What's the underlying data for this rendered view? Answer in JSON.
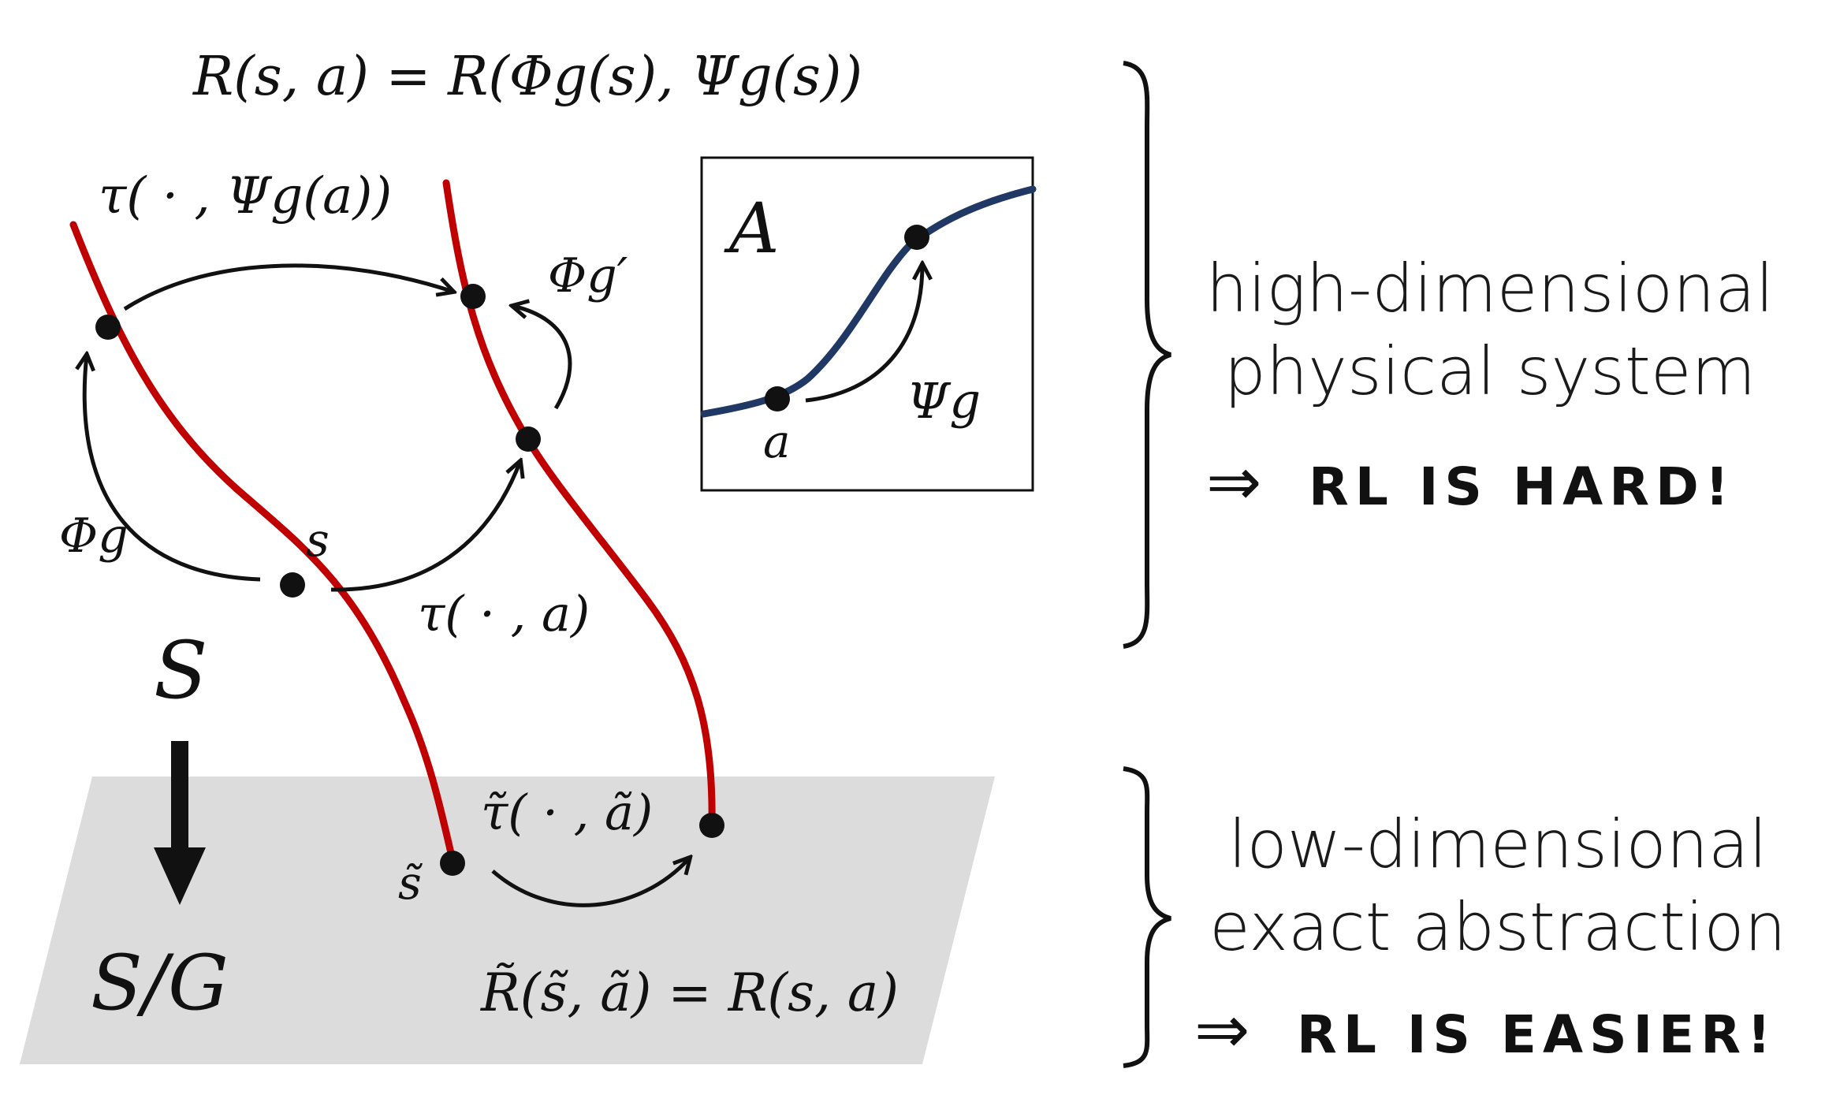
{
  "colors": {
    "fiber": "#c00000",
    "action_curve": "#1f3864",
    "plane": "#dcdcdc",
    "ink": "#111111"
  },
  "equation_top": "R(s, a) = R(Φg(s), Ψg(s))",
  "labels": {
    "tau_psi": "τ( · , Ψg(a))",
    "phi_g_prime": "Φg′",
    "phi_g": "Φg",
    "s": "s",
    "tau_a": "τ( · , a)",
    "state_space": "S",
    "quotient": "S/G",
    "s_tilde": "s̃",
    "tau_tilde": "τ̃( · , ã)",
    "reward_tilde": "R̃(s̃, ã) = R(s, a)"
  },
  "inset": {
    "title": "A",
    "point_label": "a",
    "map_label": "Ψg"
  },
  "right_panel": {
    "top_line1": "high-dimensional",
    "top_line2": "physical system",
    "top_implies": "⇒",
    "top_conclusion": "RL IS HARD!",
    "bottom_line1": "low-dimensional",
    "bottom_line2": "exact abstraction",
    "bottom_implies": "⇒",
    "bottom_conclusion": "RL IS EASIER!"
  }
}
